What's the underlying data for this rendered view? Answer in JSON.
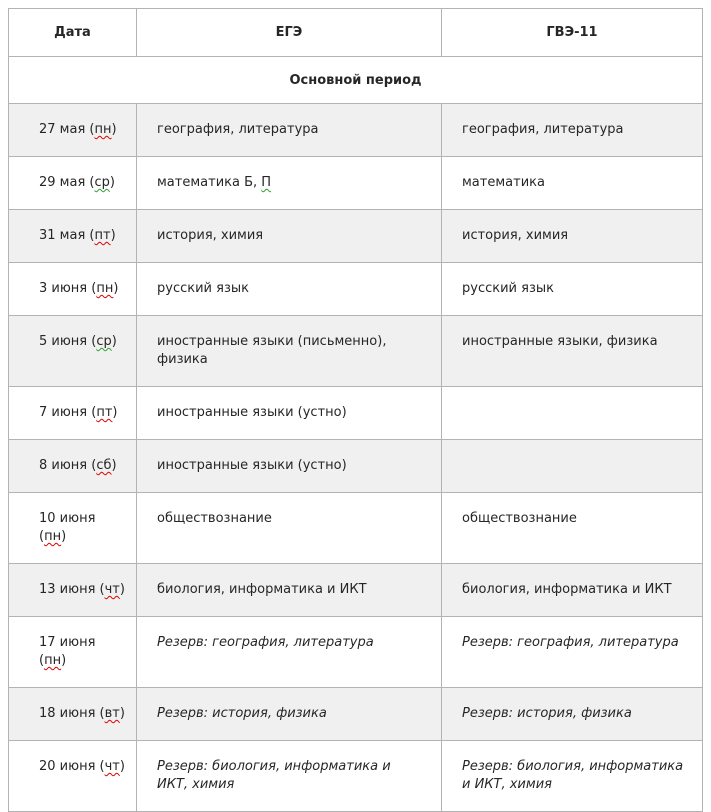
{
  "colors": {
    "text": "#262626",
    "row_stripe": "#f0f0f0",
    "border": "#b3b3b3",
    "spellcheck_red": "#dd0000",
    "spellcheck_green": "#2f9e2f"
  },
  "table": {
    "headers": [
      {
        "id": "date",
        "label": "Дата"
      },
      {
        "id": "ege",
        "label": "ЕГЭ"
      },
      {
        "id": "gve11",
        "label": "ГВЭ-11"
      }
    ],
    "section_title": "Основной период",
    "rows": [
      {
        "date": [
          {
            "t": "27 мая ("
          },
          {
            "t": "пн",
            "check": "red"
          },
          {
            "t": ")"
          }
        ],
        "ege": [
          {
            "t": "география, литература"
          }
        ],
        "gve": [
          {
            "t": "география, литература"
          }
        ],
        "italic": false
      },
      {
        "date": [
          {
            "t": "29 мая ("
          },
          {
            "t": "ср",
            "check": "green"
          },
          {
            "t": ")"
          }
        ],
        "ege": [
          {
            "t": "математика Б, "
          },
          {
            "t": "П",
            "check": "green"
          }
        ],
        "gve": [
          {
            "t": "математика"
          }
        ],
        "italic": false
      },
      {
        "date": [
          {
            "t": "31 мая ("
          },
          {
            "t": "пт",
            "check": "red"
          },
          {
            "t": ")"
          }
        ],
        "ege": [
          {
            "t": "история, химия"
          }
        ],
        "gve": [
          {
            "t": "история, химия"
          }
        ],
        "italic": false
      },
      {
        "date": [
          {
            "t": "3 июня ("
          },
          {
            "t": "пн",
            "check": "red"
          },
          {
            "t": ")"
          }
        ],
        "ege": [
          {
            "t": "русский язык"
          }
        ],
        "gve": [
          {
            "t": "русский язык"
          }
        ],
        "italic": false
      },
      {
        "date": [
          {
            "t": "5 июня ("
          },
          {
            "t": "ср",
            "check": "green"
          },
          {
            "t": ")"
          }
        ],
        "ege": [
          {
            "t": "иностранные языки (письменно),\nфизика"
          }
        ],
        "gve": [
          {
            "t": "иностранные языки, физика"
          }
        ],
        "italic": false
      },
      {
        "date": [
          {
            "t": "7 июня ("
          },
          {
            "t": "пт",
            "check": "red"
          },
          {
            "t": ")"
          }
        ],
        "ege": [
          {
            "t": "иностранные языки (устно)"
          }
        ],
        "gve": [],
        "italic": false
      },
      {
        "date": [
          {
            "t": "8 июня ("
          },
          {
            "t": "сб",
            "check": "red"
          },
          {
            "t": ")"
          }
        ],
        "ege": [
          {
            "t": "иностранные языки (устно)"
          }
        ],
        "gve": [],
        "italic": false
      },
      {
        "date": [
          {
            "t": "10 июня\n("
          },
          {
            "t": "пн",
            "check": "red"
          },
          {
            "t": ")"
          }
        ],
        "ege": [
          {
            "t": "обществознание"
          }
        ],
        "gve": [
          {
            "t": "обществознание"
          }
        ],
        "italic": false
      },
      {
        "date": [
          {
            "t": "13 июня ("
          },
          {
            "t": "чт",
            "check": "red"
          },
          {
            "t": ")"
          }
        ],
        "ege": [
          {
            "t": "биология, информатика и ИКТ"
          }
        ],
        "gve": [
          {
            "t": "биология, информатика и ИКТ"
          }
        ],
        "italic": false
      },
      {
        "date": [
          {
            "t": "17 июня\n("
          },
          {
            "t": "пн",
            "check": "red"
          },
          {
            "t": ")"
          }
        ],
        "ege": [
          {
            "t": "Резерв: география, литература"
          }
        ],
        "gve": [
          {
            "t": "Резерв: география, литература"
          }
        ],
        "italic": true
      },
      {
        "date": [
          {
            "t": "18 июня ("
          },
          {
            "t": "вт",
            "check": "red"
          },
          {
            "t": ")"
          }
        ],
        "ege": [
          {
            "t": "Резерв: история, физика"
          }
        ],
        "gve": [
          {
            "t": "Резерв: история, физика"
          }
        ],
        "italic": true
      },
      {
        "date": [
          {
            "t": "20 июня ("
          },
          {
            "t": "чт",
            "check": "red"
          },
          {
            "t": ")"
          }
        ],
        "ege": [
          {
            "t": "Резерв: биология, информатика и\nИКТ, химия"
          }
        ],
        "gve": [
          {
            "t": "Резерв: биология, информатика\nи ИКТ, химия"
          }
        ],
        "italic": true
      }
    ]
  }
}
